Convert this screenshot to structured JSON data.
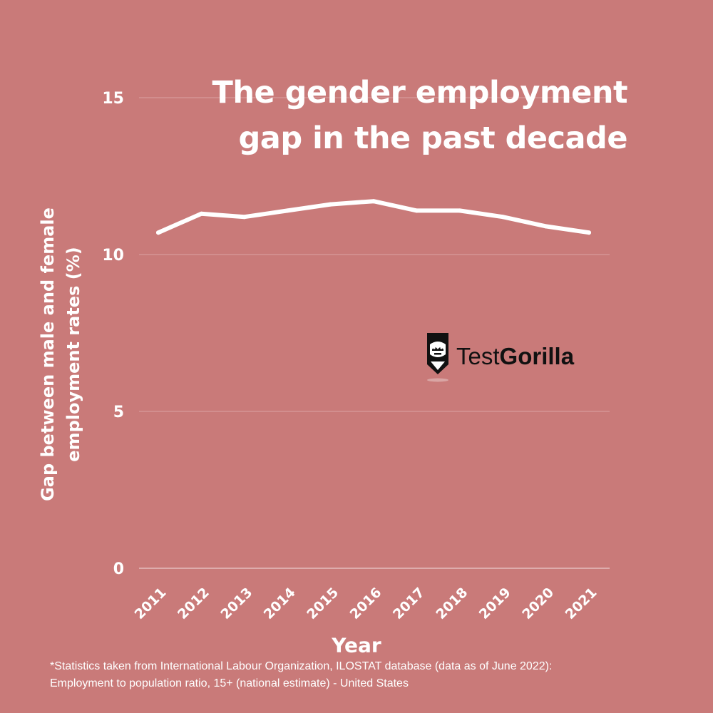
{
  "chart_data": {
    "type": "line",
    "title": "The gender employment gap in the past decade",
    "title_lines": [
      "The gender employment",
      "gap in the past decade"
    ],
    "xlabel": "Year",
    "ylabel_lines": [
      "Gap between male and female",
      "employment rates (%)"
    ],
    "categories": [
      "2011",
      "2012",
      "2013",
      "2014",
      "2015",
      "2016",
      "2017",
      "2018",
      "2019",
      "2020",
      "2021"
    ],
    "values": [
      10.7,
      11.3,
      11.2,
      11.4,
      11.6,
      11.7,
      11.4,
      11.4,
      11.2,
      10.9,
      10.7
    ],
    "yticks": [
      0,
      5,
      10,
      15
    ],
    "ylim": [
      0,
      15
    ],
    "grid": true,
    "colors": {
      "background": "#c97a79",
      "line": "#ffffff",
      "grid": "#e8c5c4",
      "text": "#ffffff"
    }
  },
  "footnote_lines": [
    "*Statistics taken from International Labour Organization, ILOSTAT database (data as of June 2022):",
    "Employment to population ratio, 15+ (national estimate) - United States"
  ],
  "logo": {
    "icon": "gorilla-icon",
    "text_regular": "Test",
    "text_bold": "Gorilla"
  }
}
